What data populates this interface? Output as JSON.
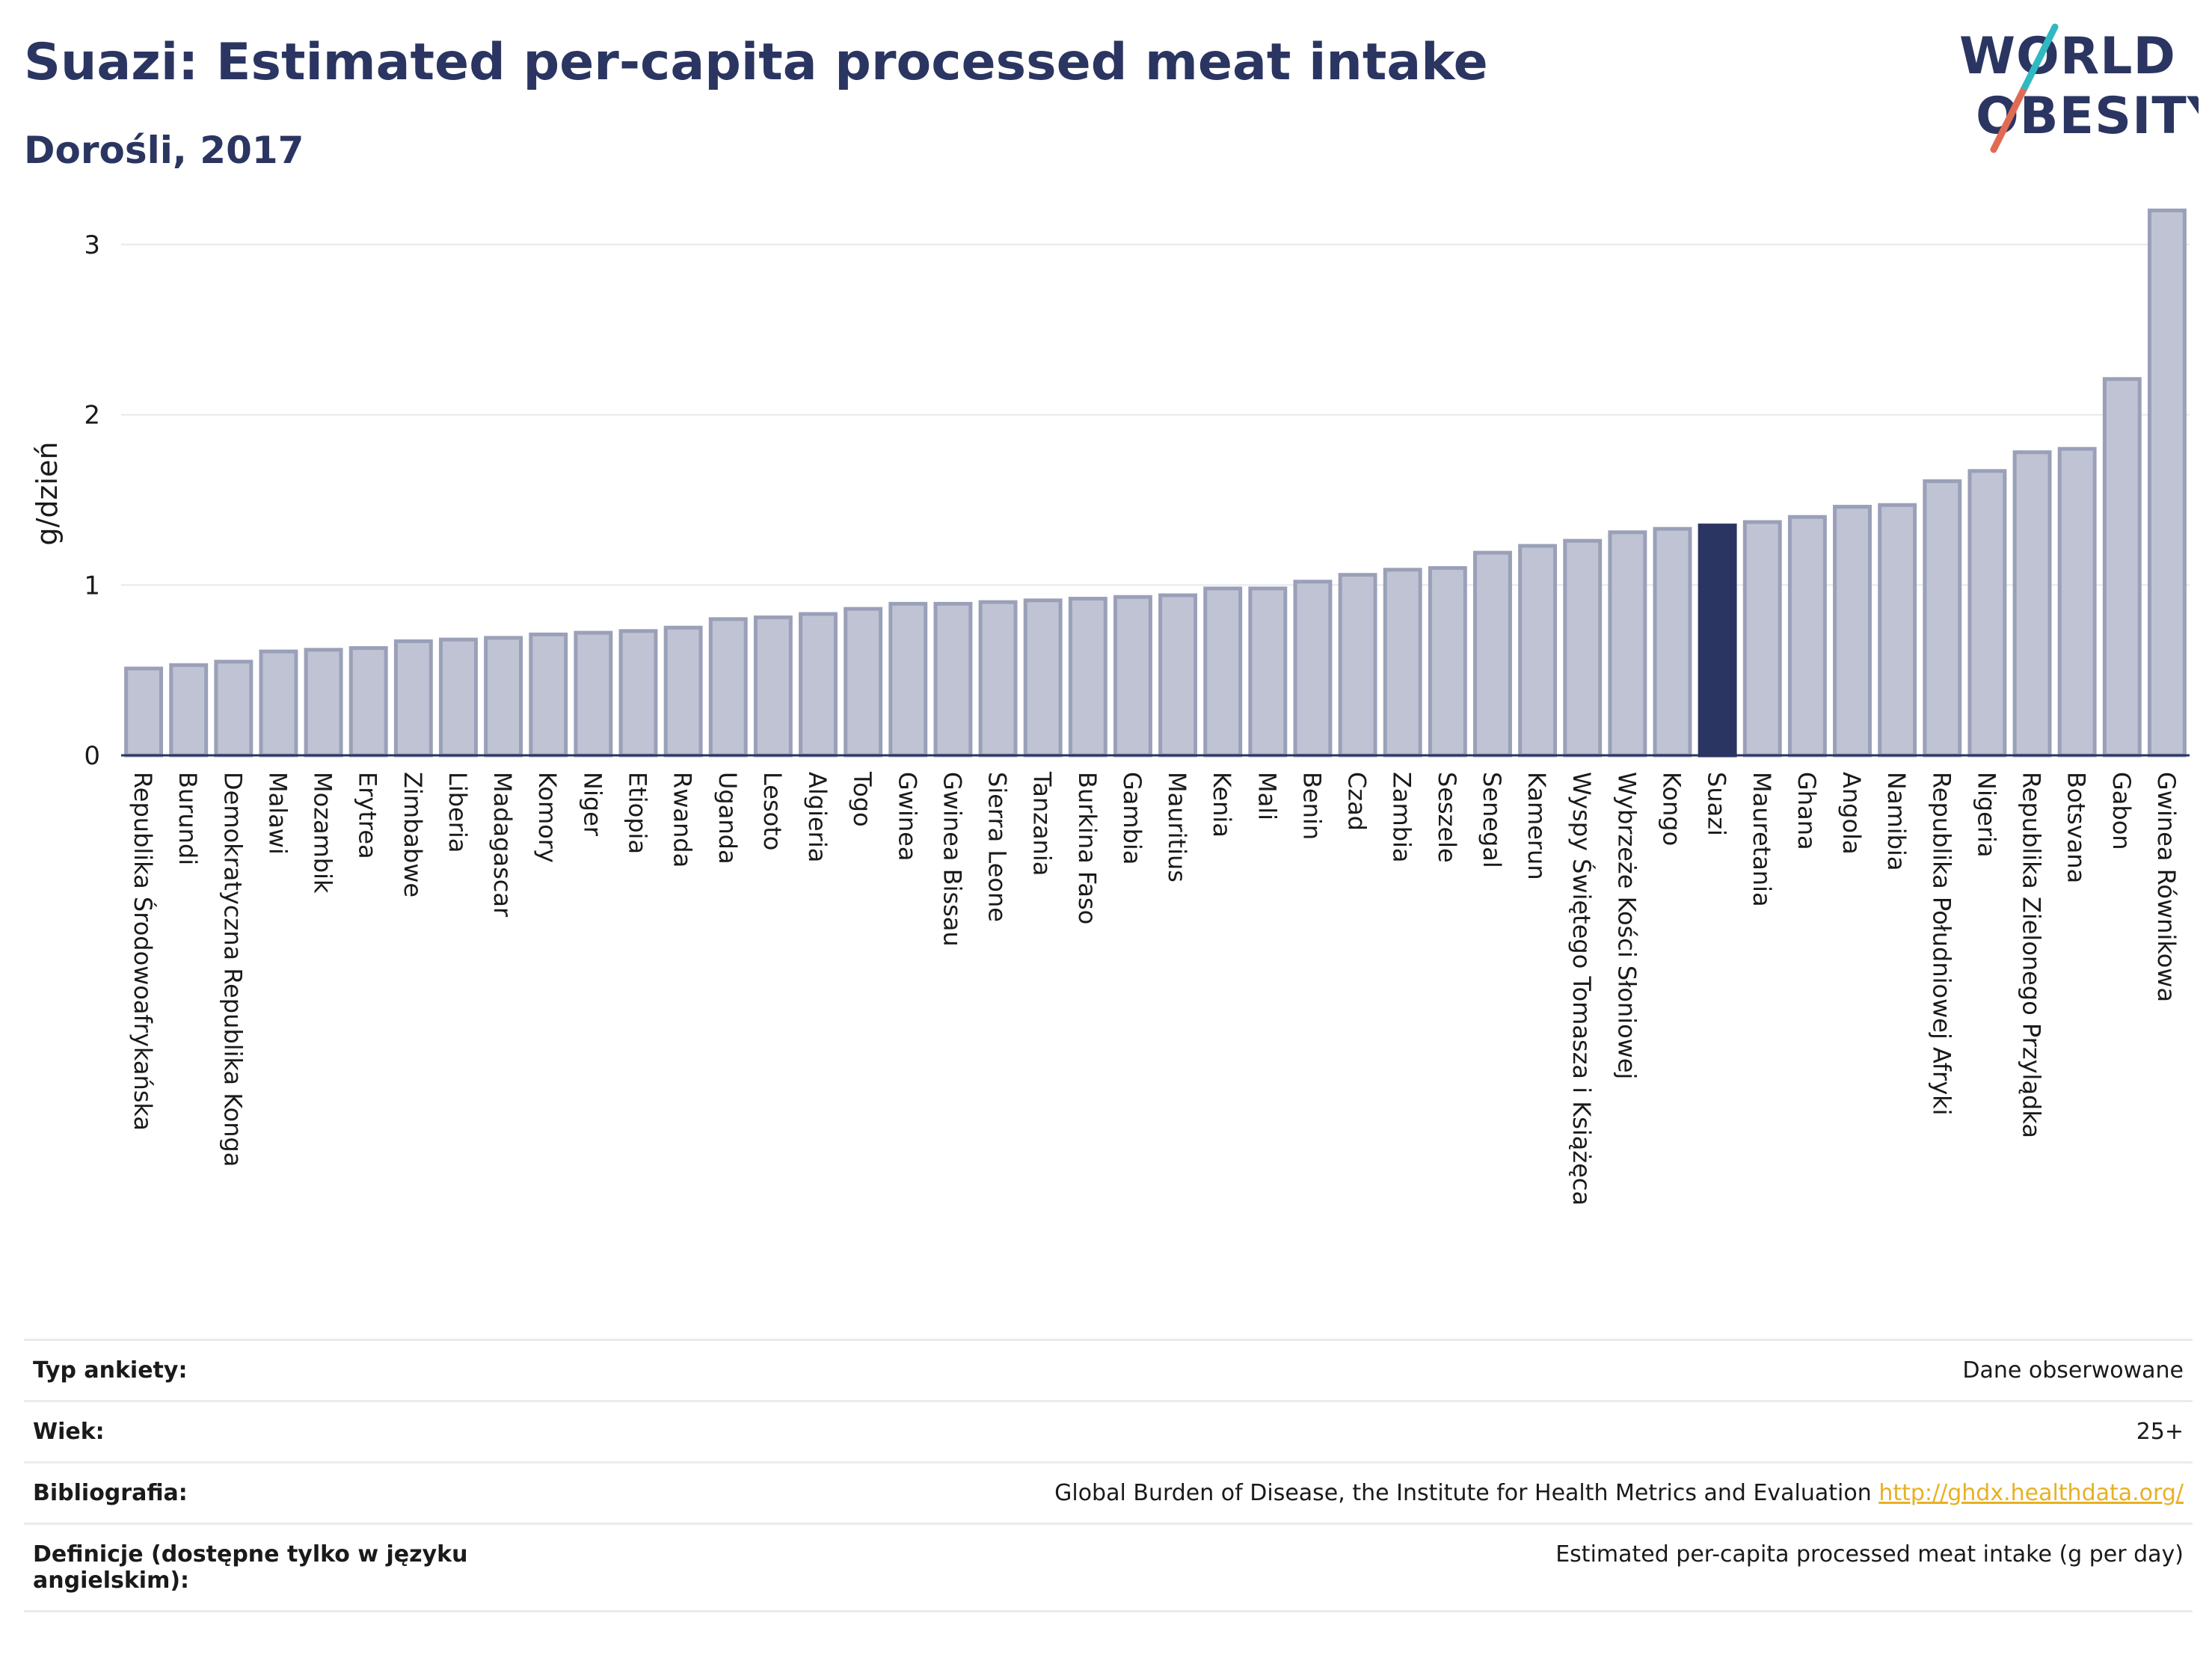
{
  "title": "Suazi: Estimated per-capita processed meat intake",
  "subtitle": "Dorośli, 2017",
  "logo": {
    "line1": "WORLD",
    "line2": "OBESITY",
    "accent_colors": [
      "#e16a54",
      "#2fb9c0"
    ]
  },
  "colors": {
    "bar": "#bfc3d3",
    "bar_stroke": "#9aa0b8",
    "highlight": "#2b3561",
    "grid": "#e6e8ec"
  },
  "chart_data": {
    "type": "bar",
    "ylabel": "g/dzień",
    "ylim": [
      0,
      3.25
    ],
    "yticks": [
      0,
      1,
      2,
      3
    ],
    "grid": true,
    "highlight": "Suazi",
    "categories": [
      "Republika Środowoafrykańska",
      "Burundi",
      "Demokratyczna Republika Konga",
      "Malawi",
      "Mozambik",
      "Erytrea",
      "Zimbabwe",
      "Liberia",
      "Madagascar",
      "Komory",
      "Niger",
      "Etiopia",
      "Rwanda",
      "Uganda",
      "Lesoto",
      "Algieria",
      "Togo",
      "Gwinea",
      "Gwinea Bissau",
      "Sierra Leone",
      "Tanzania",
      "Burkina Faso",
      "Gambia",
      "Mauritius",
      "Kenia",
      "Mali",
      "Benin",
      "Czad",
      "Zambia",
      "Seszele",
      "Senegal",
      "Kamerun",
      "Wyspy Świętego Tomasza i Książęca",
      "Wybrzeże Kości Słoniowej",
      "Kongo",
      "Suazi",
      "Mauretania",
      "Ghana",
      "Angola",
      "Namibia",
      "Republika Południowej Afryki",
      "Nigeria",
      "Republika Zielonego Przylądka",
      "Botsvana",
      "Gabon",
      "Gwinea Równikowa"
    ],
    "values": [
      0.51,
      0.53,
      0.55,
      0.61,
      0.62,
      0.63,
      0.67,
      0.68,
      0.69,
      0.71,
      0.72,
      0.73,
      0.75,
      0.8,
      0.81,
      0.83,
      0.86,
      0.89,
      0.89,
      0.9,
      0.91,
      0.92,
      0.93,
      0.94,
      0.98,
      0.98,
      1.02,
      1.06,
      1.09,
      1.1,
      1.19,
      1.23,
      1.26,
      1.31,
      1.33,
      1.35,
      1.37,
      1.4,
      1.46,
      1.47,
      1.61,
      1.67,
      1.78,
      1.8,
      2.21,
      3.2
    ]
  },
  "info": [
    {
      "key": "Typ ankiety:",
      "value": "Dane obserwowane"
    },
    {
      "key": "Wiek:",
      "value": "25+"
    },
    {
      "key": "Bibliografia:",
      "value": "Global Burden of Disease, the Institute for Health Metrics and Evaluation",
      "link": "http://ghdx.healthdata.org/"
    },
    {
      "key": "Definicje (dostępne tylko w języku angielskim):",
      "value": "Estimated per-capita processed meat intake (g per day)"
    }
  ]
}
